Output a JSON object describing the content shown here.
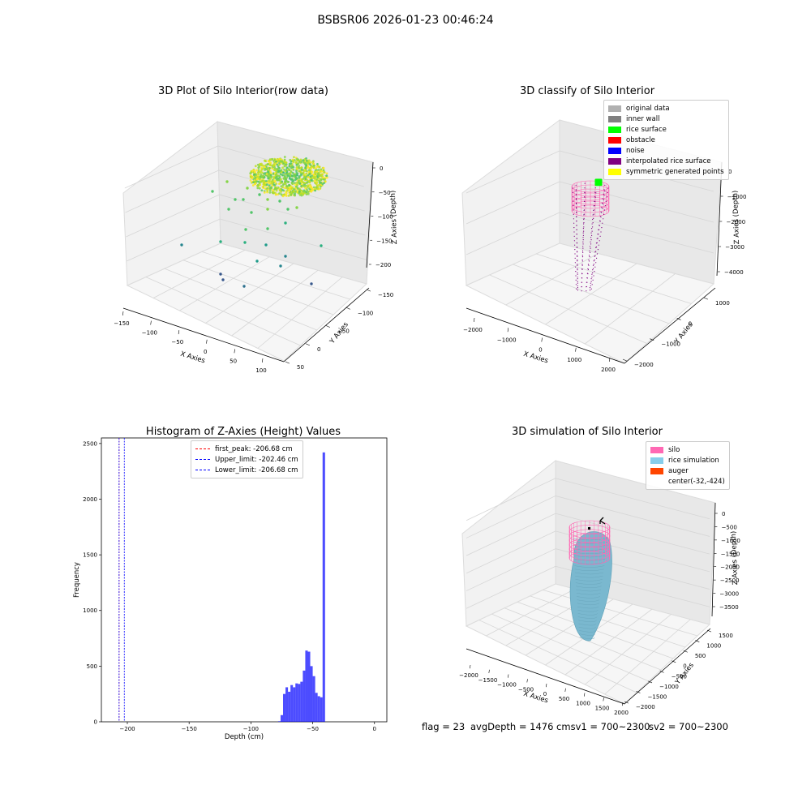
{
  "figure": {
    "title": "BSBSR06 2026-01-23 00:46:24"
  },
  "chart_data": [
    {
      "type": "scatter",
      "title": "3D Plot of Silo Interior(row data)",
      "xlabel": "X Axies",
      "ylabel": "Y Axies",
      "zlabel": "Z Axies (Depth)",
      "x_ticks": [
        "−150",
        "−100",
        "−50",
        "0",
        "50",
        "100"
      ],
      "y_ticks": [
        "−150",
        "−100",
        "−50",
        "0",
        "50"
      ],
      "z_ticks": [
        "0",
        "−50",
        "−100",
        "−150",
        "−200"
      ],
      "colormap": "viridis"
    },
    {
      "type": "scatter",
      "title": "3D classify of Silo Interior",
      "xlabel": "X Axies",
      "ylabel": "Y Axies",
      "zlabel": "Z Axies (Depth)",
      "x_ticks": [
        "−2000",
        "−1000",
        "0",
        "1000",
        "2000"
      ],
      "y_ticks": [
        "−2000",
        "−1000",
        "0",
        "1000"
      ],
      "z_ticks": [
        "0",
        "−1000",
        "−2000",
        "−3000",
        "−4000"
      ],
      "legend": [
        {
          "name": "original data",
          "color": "#b0b0b0"
        },
        {
          "name": "inner wall",
          "color": "#808080"
        },
        {
          "name": "rice surface",
          "color": "#00ff00"
        },
        {
          "name": "obstacle",
          "color": "#ff0000"
        },
        {
          "name": "noise",
          "color": "#0000ff"
        },
        {
          "name": "interpolated rice surface",
          "color": "#800080"
        },
        {
          "name": "symmetric generated points",
          "color": "#ffff00"
        }
      ]
    },
    {
      "type": "bar",
      "title": "Histogram of Z-Axies (Height) Values",
      "xlabel": "Depth (cm)",
      "ylabel": "Frequency",
      "xlim": [
        -221,
        10
      ],
      "ylim": [
        0,
        2550
      ],
      "x_ticks": [
        -200,
        -150,
        -100,
        -50,
        0
      ],
      "x_tick_labels": [
        "−200",
        "−150",
        "−100",
        "−50",
        "0"
      ],
      "y_ticks": [
        0,
        500,
        1000,
        1500,
        2000,
        2500
      ],
      "bin_width": 2,
      "bins_start": [
        -78,
        -76,
        -74,
        -72,
        -70,
        -68,
        -66,
        -64,
        -62,
        -60,
        -58,
        -56,
        -54,
        -52,
        -50,
        -48,
        -46,
        -44,
        -42,
        -40,
        -38,
        -36,
        -34,
        -32,
        -30,
        -28,
        -26,
        -24,
        -22,
        -20,
        -18,
        -16,
        -14,
        -12,
        -10,
        -8,
        -6,
        -4,
        -2
      ],
      "values": [
        5,
        60,
        250,
        310,
        270,
        330,
        310,
        345,
        340,
        360,
        460,
        640,
        630,
        500,
        410,
        260,
        230,
        220,
        2420
      ],
      "bin_starts_used": [
        -78,
        -76,
        -74,
        -72,
        -70,
        -68,
        -66,
        -64,
        -62,
        -60,
        -58,
        -56,
        -54,
        -52,
        -50,
        -48,
        -46,
        -44,
        -42
      ],
      "bar_color": "#0000ff",
      "lines": [
        {
          "name": "first_peak: -206.68 cm",
          "x": -206.68,
          "color": "#ff0000"
        },
        {
          "name": "Upper_limit: -202.46 cm",
          "x": -202.46,
          "color": "#0000ff"
        },
        {
          "name": "Lower_limit: -206.68 cm",
          "x": -206.68,
          "color": "#0000ff"
        }
      ]
    },
    {
      "type": "scatter",
      "title": "3D simulation of Silo Interior",
      "xlabel": "X Axies",
      "ylabel": "Y Axies",
      "zlabel": "Z Axies (Depth)",
      "x_ticks": [
        "−2000",
        "−1500",
        "−1000",
        "−500",
        "0",
        "500",
        "1000",
        "1500",
        "2000"
      ],
      "y_ticks": [
        "−2000",
        "−1500",
        "−1000",
        "−500",
        "0",
        "500",
        "1000",
        "1500"
      ],
      "z_ticks": [
        "0",
        "−500",
        "−1000",
        "−1500",
        "−2000",
        "−2500",
        "−3000",
        "−3500"
      ],
      "legend": [
        {
          "name": "silo",
          "color": "#ff69b4"
        },
        {
          "name": "rice simulation",
          "color": "#87ceeb"
        },
        {
          "name": "auger",
          "color": "#ff4500"
        },
        {
          "name": "center(-32,-424)",
          "color": ""
        }
      ]
    }
  ],
  "footer": {
    "flag": "flag = 23",
    "avg_depth": "avgDepth = 1476 cmsv1 = 700~2300",
    "sv2": "sv2 = 700~2300"
  }
}
